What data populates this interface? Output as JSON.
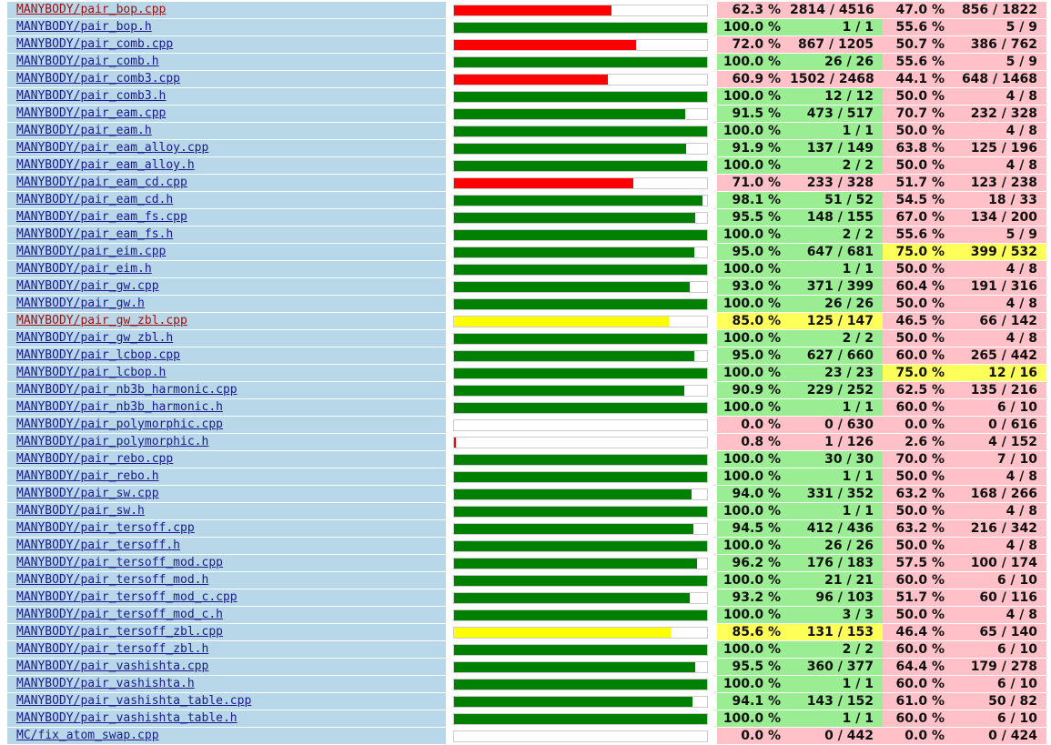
{
  "table": {
    "rows": [
      {
        "file": "MANYBODY/pair_bop.cpp",
        "line_rate": {
          "value": 62.3,
          "label": "62.3 %"
        },
        "lines": "2814 / 4516",
        "func_rate": {
          "value": 47.0,
          "label": "47.0 %"
        },
        "funcs": "856 / 1822",
        "visited": true
      },
      {
        "file": "MANYBODY/pair_bop.h",
        "line_rate": {
          "value": 100.0,
          "label": "100.0 %"
        },
        "lines": "1 / 1",
        "func_rate": {
          "value": 55.6,
          "label": "55.6 %"
        },
        "funcs": "5 / 9"
      },
      {
        "file": "MANYBODY/pair_comb.cpp",
        "line_rate": {
          "value": 72.0,
          "label": "72.0 %"
        },
        "lines": "867 / 1205",
        "func_rate": {
          "value": 50.7,
          "label": "50.7 %"
        },
        "funcs": "386 / 762"
      },
      {
        "file": "MANYBODY/pair_comb.h",
        "line_rate": {
          "value": 100.0,
          "label": "100.0 %"
        },
        "lines": "26 / 26",
        "func_rate": {
          "value": 55.6,
          "label": "55.6 %"
        },
        "funcs": "5 / 9"
      },
      {
        "file": "MANYBODY/pair_comb3.cpp",
        "line_rate": {
          "value": 60.9,
          "label": "60.9 %"
        },
        "lines": "1502 / 2468",
        "func_rate": {
          "value": 44.1,
          "label": "44.1 %"
        },
        "funcs": "648 / 1468"
      },
      {
        "file": "MANYBODY/pair_comb3.h",
        "line_rate": {
          "value": 100.0,
          "label": "100.0 %"
        },
        "lines": "12 / 12",
        "func_rate": {
          "value": 50.0,
          "label": "50.0 %"
        },
        "funcs": "4 / 8"
      },
      {
        "file": "MANYBODY/pair_eam.cpp",
        "line_rate": {
          "value": 91.5,
          "label": "91.5 %"
        },
        "lines": "473 / 517",
        "func_rate": {
          "value": 70.7,
          "label": "70.7 %"
        },
        "funcs": "232 / 328"
      },
      {
        "file": "MANYBODY/pair_eam.h",
        "line_rate": {
          "value": 100.0,
          "label": "100.0 %"
        },
        "lines": "1 / 1",
        "func_rate": {
          "value": 50.0,
          "label": "50.0 %"
        },
        "funcs": "4 / 8"
      },
      {
        "file": "MANYBODY/pair_eam_alloy.cpp",
        "line_rate": {
          "value": 91.9,
          "label": "91.9 %"
        },
        "lines": "137 / 149",
        "func_rate": {
          "value": 63.8,
          "label": "63.8 %"
        },
        "funcs": "125 / 196"
      },
      {
        "file": "MANYBODY/pair_eam_alloy.h",
        "line_rate": {
          "value": 100.0,
          "label": "100.0 %"
        },
        "lines": "2 / 2",
        "func_rate": {
          "value": 50.0,
          "label": "50.0 %"
        },
        "funcs": "4 / 8"
      },
      {
        "file": "MANYBODY/pair_eam_cd.cpp",
        "line_rate": {
          "value": 71.0,
          "label": "71.0 %"
        },
        "lines": "233 / 328",
        "func_rate": {
          "value": 51.7,
          "label": "51.7 %"
        },
        "funcs": "123 / 238"
      },
      {
        "file": "MANYBODY/pair_eam_cd.h",
        "line_rate": {
          "value": 98.1,
          "label": "98.1 %"
        },
        "lines": "51 / 52",
        "func_rate": {
          "value": 54.5,
          "label": "54.5 %"
        },
        "funcs": "18 / 33"
      },
      {
        "file": "MANYBODY/pair_eam_fs.cpp",
        "line_rate": {
          "value": 95.5,
          "label": "95.5 %"
        },
        "lines": "148 / 155",
        "func_rate": {
          "value": 67.0,
          "label": "67.0 %"
        },
        "funcs": "134 / 200"
      },
      {
        "file": "MANYBODY/pair_eam_fs.h",
        "line_rate": {
          "value": 100.0,
          "label": "100.0 %"
        },
        "lines": "2 / 2",
        "func_rate": {
          "value": 55.6,
          "label": "55.6 %"
        },
        "funcs": "5 / 9"
      },
      {
        "file": "MANYBODY/pair_eim.cpp",
        "line_rate": {
          "value": 95.0,
          "label": "95.0 %"
        },
        "lines": "647 / 681",
        "func_rate": {
          "value": 75.0,
          "label": "75.0 %"
        },
        "funcs": "399 / 532"
      },
      {
        "file": "MANYBODY/pair_eim.h",
        "line_rate": {
          "value": 100.0,
          "label": "100.0 %"
        },
        "lines": "1 / 1",
        "func_rate": {
          "value": 50.0,
          "label": "50.0 %"
        },
        "funcs": "4 / 8"
      },
      {
        "file": "MANYBODY/pair_gw.cpp",
        "line_rate": {
          "value": 93.0,
          "label": "93.0 %"
        },
        "lines": "371 / 399",
        "func_rate": {
          "value": 60.4,
          "label": "60.4 %"
        },
        "funcs": "191 / 316"
      },
      {
        "file": "MANYBODY/pair_gw.h",
        "line_rate": {
          "value": 100.0,
          "label": "100.0 %"
        },
        "lines": "26 / 26",
        "func_rate": {
          "value": 50.0,
          "label": "50.0 %"
        },
        "funcs": "4 / 8"
      },
      {
        "file": "MANYBODY/pair_gw_zbl.cpp",
        "line_rate": {
          "value": 85.0,
          "label": "85.0 %"
        },
        "lines": "125 / 147",
        "func_rate": {
          "value": 46.5,
          "label": "46.5 %"
        },
        "funcs": "66 / 142",
        "visited": true
      },
      {
        "file": "MANYBODY/pair_gw_zbl.h",
        "line_rate": {
          "value": 100.0,
          "label": "100.0 %"
        },
        "lines": "2 / 2",
        "func_rate": {
          "value": 50.0,
          "label": "50.0 %"
        },
        "funcs": "4 / 8"
      },
      {
        "file": "MANYBODY/pair_lcbop.cpp",
        "line_rate": {
          "value": 95.0,
          "label": "95.0 %"
        },
        "lines": "627 / 660",
        "func_rate": {
          "value": 60.0,
          "label": "60.0 %"
        },
        "funcs": "265 / 442"
      },
      {
        "file": "MANYBODY/pair_lcbop.h",
        "line_rate": {
          "value": 100.0,
          "label": "100.0 %"
        },
        "lines": "23 / 23",
        "func_rate": {
          "value": 75.0,
          "label": "75.0 %"
        },
        "funcs": "12 / 16"
      },
      {
        "file": "MANYBODY/pair_nb3b_harmonic.cpp",
        "line_rate": {
          "value": 90.9,
          "label": "90.9 %"
        },
        "lines": "229 / 252",
        "func_rate": {
          "value": 62.5,
          "label": "62.5 %"
        },
        "funcs": "135 / 216"
      },
      {
        "file": "MANYBODY/pair_nb3b_harmonic.h",
        "line_rate": {
          "value": 100.0,
          "label": "100.0 %"
        },
        "lines": "1 / 1",
        "func_rate": {
          "value": 60.0,
          "label": "60.0 %"
        },
        "funcs": "6 / 10"
      },
      {
        "file": "MANYBODY/pair_polymorphic.cpp",
        "line_rate": {
          "value": 0.0,
          "label": "0.0 %"
        },
        "lines": "0 / 630",
        "func_rate": {
          "value": 0.0,
          "label": "0.0 %"
        },
        "funcs": "0 / 616"
      },
      {
        "file": "MANYBODY/pair_polymorphic.h",
        "line_rate": {
          "value": 0.8,
          "label": "0.8 %"
        },
        "lines": "1 / 126",
        "func_rate": {
          "value": 2.6,
          "label": "2.6 %"
        },
        "funcs": "4 / 152"
      },
      {
        "file": "MANYBODY/pair_rebo.cpp",
        "line_rate": {
          "value": 100.0,
          "label": "100.0 %"
        },
        "lines": "30 / 30",
        "func_rate": {
          "value": 70.0,
          "label": "70.0 %"
        },
        "funcs": "7 / 10"
      },
      {
        "file": "MANYBODY/pair_rebo.h",
        "line_rate": {
          "value": 100.0,
          "label": "100.0 %"
        },
        "lines": "1 / 1",
        "func_rate": {
          "value": 50.0,
          "label": "50.0 %"
        },
        "funcs": "4 / 8"
      },
      {
        "file": "MANYBODY/pair_sw.cpp",
        "line_rate": {
          "value": 94.0,
          "label": "94.0 %"
        },
        "lines": "331 / 352",
        "func_rate": {
          "value": 63.2,
          "label": "63.2 %"
        },
        "funcs": "168 / 266"
      },
      {
        "file": "MANYBODY/pair_sw.h",
        "line_rate": {
          "value": 100.0,
          "label": "100.0 %"
        },
        "lines": "1 / 1",
        "func_rate": {
          "value": 50.0,
          "label": "50.0 %"
        },
        "funcs": "4 / 8"
      },
      {
        "file": "MANYBODY/pair_tersoff.cpp",
        "line_rate": {
          "value": 94.5,
          "label": "94.5 %"
        },
        "lines": "412 / 436",
        "func_rate": {
          "value": 63.2,
          "label": "63.2 %"
        },
        "funcs": "216 / 342"
      },
      {
        "file": "MANYBODY/pair_tersoff.h",
        "line_rate": {
          "value": 100.0,
          "label": "100.0 %"
        },
        "lines": "26 / 26",
        "func_rate": {
          "value": 50.0,
          "label": "50.0 %"
        },
        "funcs": "4 / 8"
      },
      {
        "file": "MANYBODY/pair_tersoff_mod.cpp",
        "line_rate": {
          "value": 96.2,
          "label": "96.2 %"
        },
        "lines": "176 / 183",
        "func_rate": {
          "value": 57.5,
          "label": "57.5 %"
        },
        "funcs": "100 / 174"
      },
      {
        "file": "MANYBODY/pair_tersoff_mod.h",
        "line_rate": {
          "value": 100.0,
          "label": "100.0 %"
        },
        "lines": "21 / 21",
        "func_rate": {
          "value": 60.0,
          "label": "60.0 %"
        },
        "funcs": "6 / 10"
      },
      {
        "file": "MANYBODY/pair_tersoff_mod_c.cpp",
        "line_rate": {
          "value": 93.2,
          "label": "93.2 %"
        },
        "lines": "96 / 103",
        "func_rate": {
          "value": 51.7,
          "label": "51.7 %"
        },
        "funcs": "60 / 116"
      },
      {
        "file": "MANYBODY/pair_tersoff_mod_c.h",
        "line_rate": {
          "value": 100.0,
          "label": "100.0 %"
        },
        "lines": "3 / 3",
        "func_rate": {
          "value": 50.0,
          "label": "50.0 %"
        },
        "funcs": "4 / 8"
      },
      {
        "file": "MANYBODY/pair_tersoff_zbl.cpp",
        "line_rate": {
          "value": 85.6,
          "label": "85.6 %"
        },
        "lines": "131 / 153",
        "func_rate": {
          "value": 46.4,
          "label": "46.4 %"
        },
        "funcs": "65 / 140"
      },
      {
        "file": "MANYBODY/pair_tersoff_zbl.h",
        "line_rate": {
          "value": 100.0,
          "label": "100.0 %"
        },
        "lines": "2 / 2",
        "func_rate": {
          "value": 60.0,
          "label": "60.0 %"
        },
        "funcs": "6 / 10"
      },
      {
        "file": "MANYBODY/pair_vashishta.cpp",
        "line_rate": {
          "value": 95.5,
          "label": "95.5 %"
        },
        "lines": "360 / 377",
        "func_rate": {
          "value": 64.4,
          "label": "64.4 %"
        },
        "funcs": "179 / 278"
      },
      {
        "file": "MANYBODY/pair_vashishta.h",
        "line_rate": {
          "value": 100.0,
          "label": "100.0 %"
        },
        "lines": "1 / 1",
        "func_rate": {
          "value": 60.0,
          "label": "60.0 %"
        },
        "funcs": "6 / 10"
      },
      {
        "file": "MANYBODY/pair_vashishta_table.cpp",
        "line_rate": {
          "value": 94.1,
          "label": "94.1 %"
        },
        "lines": "143 / 152",
        "func_rate": {
          "value": 61.0,
          "label": "61.0 %"
        },
        "funcs": "50 / 82"
      },
      {
        "file": "MANYBODY/pair_vashishta_table.h",
        "line_rate": {
          "value": 100.0,
          "label": "100.0 %"
        },
        "lines": "1 / 1",
        "func_rate": {
          "value": 60.0,
          "label": "60.0 %"
        },
        "funcs": "6 / 10"
      },
      {
        "file": "MC/fix_atom_swap.cpp",
        "line_rate": {
          "value": 0.0,
          "label": "0.0 %"
        },
        "lines": "0 / 442",
        "func_rate": {
          "value": 0.0,
          "label": "0.0 %"
        },
        "funcs": "0 / 424"
      }
    ]
  }
}
